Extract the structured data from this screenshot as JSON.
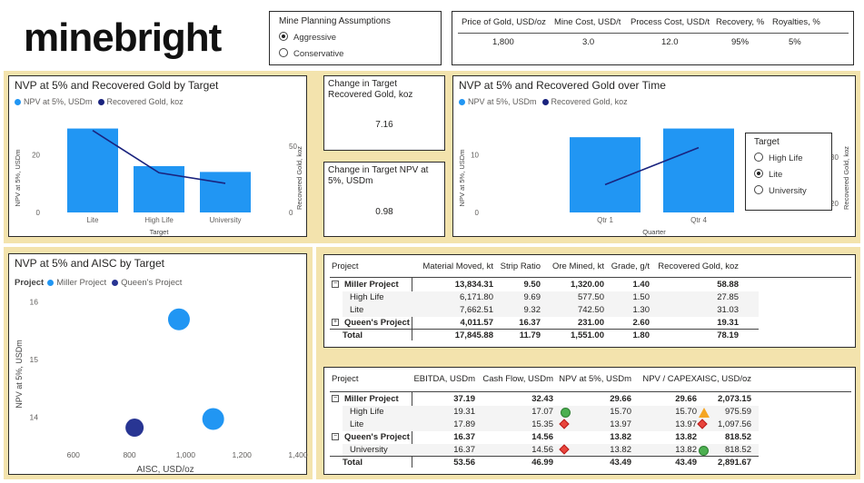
{
  "brand": {
    "logo_text": "minebright"
  },
  "assumptions": {
    "title": "Mine Planning Assumptions",
    "options": [
      {
        "label": "Aggressive",
        "selected": true
      },
      {
        "label": "Conservative",
        "selected": false
      }
    ]
  },
  "params": {
    "headers": [
      "Price of Gold, USD/oz",
      "Mine Cost, USD/t",
      "Process Cost, USD/t",
      "Recovery, %",
      "Royalties, %"
    ],
    "values": [
      "1,800",
      "3.0",
      "12.0",
      "95%",
      "5%"
    ]
  },
  "chart1": {
    "title": "NVP at 5% and Recovered Gold by Target",
    "legend": [
      "NPV at 5%, USDm",
      "Recovered Gold, koz"
    ],
    "ylabel_left": "NPV at 5%, USDm",
    "ylabel_right": "Recovered Gold, koz",
    "xlabel": "Target",
    "y_ticks_left": [
      "20",
      "0"
    ],
    "y_ticks_right": [
      "50",
      "0"
    ]
  },
  "kpi": {
    "gold_label": "Change in Target Recovered Gold, koz",
    "gold_value": "7.16",
    "npv_label": "Change in Target NPV at 5%, USDm",
    "npv_value": "0.98"
  },
  "chart2": {
    "title": "NVP at 5% and Recovered Gold over Time",
    "legend": [
      "NPV at 5%, USDm",
      "Recovered Gold, koz"
    ],
    "ylabel_left": "NPV at 5%, USDm",
    "ylabel_right": "Recovered Gold, koz",
    "xlabel": "Quarter",
    "y_ticks_left": [
      "10",
      "0"
    ],
    "y_ticks_right": [
      "30",
      "20"
    ]
  },
  "target_slicer": {
    "title": "Target",
    "options": [
      {
        "label": "High Life",
        "selected": false
      },
      {
        "label": "Lite",
        "selected": true
      },
      {
        "label": "University",
        "selected": false
      }
    ]
  },
  "chart3": {
    "title": "NVP at 5% and AISC by Target",
    "legend_title": "Project",
    "legend": [
      "Miller Project",
      "Queen's Project"
    ],
    "ylabel": "NPV at 5%, USDm",
    "xlabel": "AISC, USD/oz"
  },
  "table1": {
    "headers": [
      "Project",
      "Material Moved, kt",
      "Strip Ratio",
      "Ore Mined, kt",
      "Grade, g/t",
      "Recovered Gold, koz"
    ],
    "rows": [
      {
        "cells": [
          "Miller Project",
          "13,834.31",
          "9.50",
          "1,320.00",
          "1.40",
          "58.88"
        ],
        "level": 0,
        "expander": "−"
      },
      {
        "cells": [
          "High Life",
          "6,171.80",
          "9.69",
          "577.50",
          "1.50",
          "27.85"
        ],
        "level": 1
      },
      {
        "cells": [
          "Lite",
          "7,662.51",
          "9.32",
          "742.50",
          "1.30",
          "31.03"
        ],
        "level": 1
      },
      {
        "cells": [
          "Queen's Project",
          "4,011.57",
          "16.37",
          "231.00",
          "2.60",
          "19.31"
        ],
        "level": 0,
        "expander": "+"
      },
      {
        "cells": [
          "Total",
          "17,845.88",
          "11.79",
          "1,551.00",
          "1.80",
          "78.19"
        ],
        "level": 2
      }
    ]
  },
  "table2": {
    "headers": [
      "Project",
      "EBITDA, USDm",
      "Cash Flow, USDm",
      "NPV at 5%, USDm",
      "NPV / CAPEX",
      "AISC, USD/oz"
    ],
    "rows": [
      {
        "cells": [
          "Miller Project",
          "37.19",
          "32.43",
          "29.66",
          "29.66",
          "2,073.15"
        ],
        "level": 0,
        "expander": "−",
        "npv_icon": "",
        "aisc_icon": ""
      },
      {
        "cells": [
          "High Life",
          "19.31",
          "17.07",
          "15.70",
          "15.70",
          "975.59"
        ],
        "level": 1,
        "npv_icon": "green-circle",
        "aisc_icon": "orange-triangle"
      },
      {
        "cells": [
          "Lite",
          "17.89",
          "15.35",
          "13.97",
          "13.97",
          "1,097.56"
        ],
        "level": 1,
        "npv_icon": "red-diamond",
        "aisc_icon": "red-diamond"
      },
      {
        "cells": [
          "Queen's Project",
          "16.37",
          "14.56",
          "13.82",
          "13.82",
          "818.52"
        ],
        "level": 0,
        "expander": "−",
        "npv_icon": "",
        "aisc_icon": ""
      },
      {
        "cells": [
          "University",
          "16.37",
          "14.56",
          "13.82",
          "13.82",
          "818.52"
        ],
        "level": 1,
        "npv_icon": "red-diamond",
        "aisc_icon": "green-circle"
      },
      {
        "cells": [
          "Total",
          "53.56",
          "46.99",
          "43.49",
          "43.49",
          "2,891.67"
        ],
        "level": 2,
        "npv_icon": "",
        "aisc_icon": ""
      }
    ]
  },
  "colors": {
    "light_blue": "#2196f3",
    "dark_blue": "#1a237e",
    "band": "#f3e3ad",
    "green": "#4caf50",
    "red": "#e8453c",
    "orange": "#f5a623"
  },
  "chart_data": [
    {
      "type": "bar",
      "categories": [
        "Lite",
        "High Life",
        "University"
      ],
      "series": [
        {
          "name": "NPV at 5%, USDm",
          "axis": "left",
          "kind": "bar",
          "values": [
            29,
            16,
            14
          ]
        },
        {
          "name": "Recovered Gold, koz",
          "axis": "right",
          "kind": "line",
          "values": [
            62,
            30,
            22
          ]
        }
      ],
      "title": "NVP at 5% and Recovered Gold by Target",
      "xlabel": "Target",
      "ylabel": "NPV at 5%, USDm",
      "ylabel_right": "Recovered Gold, koz",
      "ylim": [
        0,
        32
      ],
      "ylim_right": [
        0,
        70
      ],
      "y_ticks": [
        0,
        20
      ],
      "y_ticks_right": [
        0,
        50
      ]
    },
    {
      "type": "bar",
      "categories": [
        "Qtr 1",
        "Qtr 4"
      ],
      "series": [
        {
          "name": "NPV at 5%, USDm",
          "axis": "left",
          "kind": "bar",
          "values": [
            13,
            14.5
          ]
        },
        {
          "name": "Recovered Gold, koz",
          "axis": "right",
          "kind": "line",
          "values": [
            24,
            32
          ]
        }
      ],
      "title": "NVP at 5% and Recovered Gold over Time",
      "xlabel": "Quarter",
      "ylabel": "NPV at 5%, USDm",
      "ylabel_right": "Recovered Gold, koz",
      "ylim": [
        0,
        16
      ],
      "ylim_right": [
        18,
        38
      ],
      "y_ticks": [
        0,
        10
      ],
      "y_ticks_right": [
        20,
        30
      ]
    },
    {
      "type": "scatter",
      "title": "NVP at 5% and AISC by Target",
      "xlabel": "AISC, USD/oz",
      "ylabel": "NPV at 5%, USDm",
      "xlim": [
        520,
        1400
      ],
      "ylim": [
        13.6,
        16.2
      ],
      "x_ticks": [
        600,
        800,
        1000,
        1200,
        1400
      ],
      "x_tick_labels": [
        "600",
        "800",
        "1,000",
        "1,200",
        "1,400"
      ],
      "y_ticks": [
        14,
        15,
        16
      ],
      "series": [
        {
          "name": "Miller Project",
          "points": [
            {
              "x": 976,
              "y": 15.7
            },
            {
              "x": 1098,
              "y": 13.97
            }
          ]
        },
        {
          "name": "Queen's Project",
          "points": [
            {
              "x": 818,
              "y": 13.82
            }
          ]
        }
      ]
    }
  ]
}
